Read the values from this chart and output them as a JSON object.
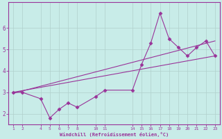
{
  "xlabel": "Windchill (Refroidissement éolien,°C)",
  "bg_color": "#c8ece8",
  "line_color": "#993399",
  "font_color": "#993399",
  "x_data": [
    1,
    2,
    4,
    5,
    6,
    7,
    8,
    10,
    11,
    14,
    15,
    16,
    17,
    18,
    19,
    20,
    21,
    22,
    23
  ],
  "y_data": [
    3.0,
    3.0,
    2.7,
    1.8,
    2.2,
    2.5,
    2.3,
    2.8,
    3.1,
    3.1,
    4.3,
    5.3,
    6.7,
    5.5,
    5.1,
    4.7,
    5.1,
    5.4,
    4.7
  ],
  "line1_x": [
    1,
    23
  ],
  "line1_y": [
    3.0,
    4.7
  ],
  "line2_x": [
    1,
    23
  ],
  "line2_y": [
    2.95,
    5.4
  ],
  "xlim": [
    0.5,
    23.5
  ],
  "ylim": [
    1.5,
    7.2
  ],
  "yticks": [
    2,
    3,
    4,
    5,
    6
  ],
  "xticks": [
    1,
    2,
    4,
    5,
    6,
    7,
    8,
    10,
    11,
    14,
    15,
    16,
    17,
    18,
    19,
    20,
    21,
    22,
    23
  ],
  "grid_color": "#b0d0cc",
  "marker": "D",
  "markersize": 2.5,
  "linewidth": 0.8
}
